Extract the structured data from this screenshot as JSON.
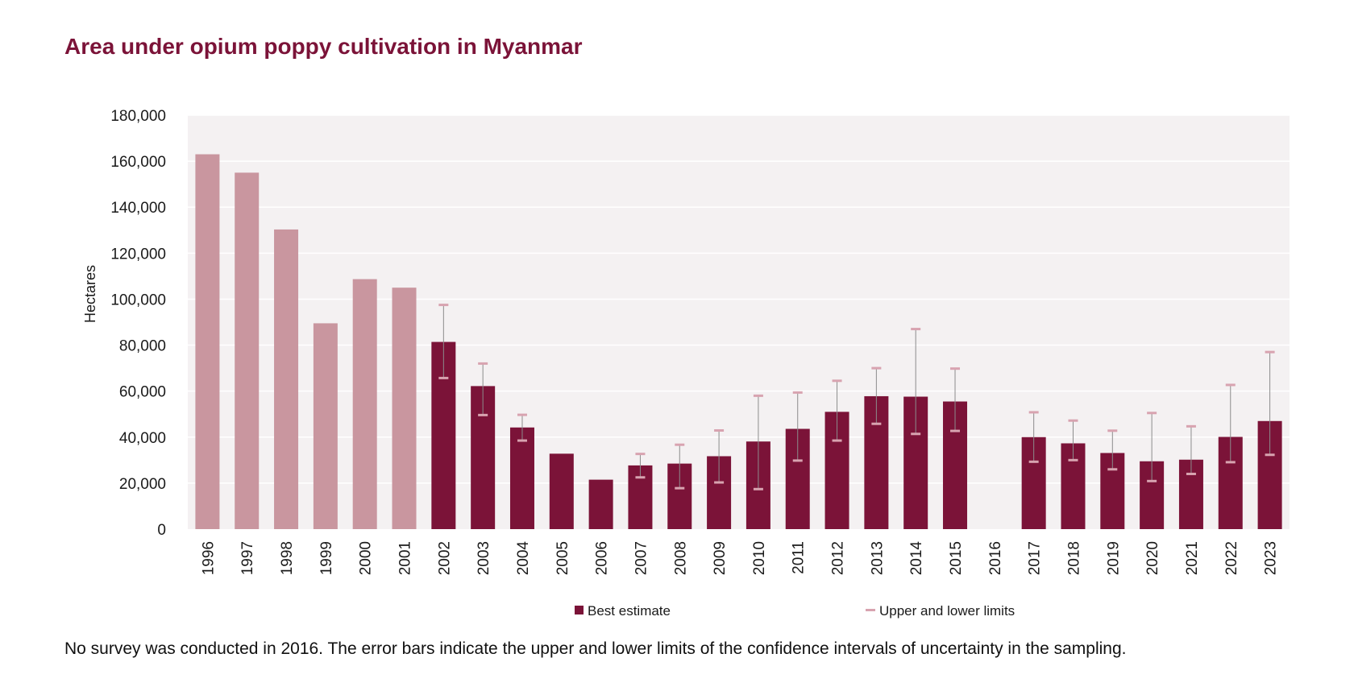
{
  "title": "Area under opium poppy cultivation in Myanmar",
  "note": "No survey was conducted in 2016. The error bars indicate the upper and lower limits of the confidence intervals of uncertainty in the sampling.",
  "colors": {
    "best": "#7b1338",
    "early": "#c9969f",
    "limit": "#d8a3b0",
    "errline": "#8c8c8c",
    "plot_bg": "#f4f1f2",
    "grid": "#ffffff",
    "title": "#7b1338"
  },
  "chart_data": {
    "type": "bar",
    "title": "Area under opium poppy cultivation in Myanmar",
    "xlabel": "",
    "ylabel": "Hectares",
    "ylim": [
      0,
      180000
    ],
    "yticks": [
      0,
      20000,
      40000,
      60000,
      80000,
      100000,
      120000,
      140000,
      160000,
      180000
    ],
    "ytick_labels": [
      "0",
      "20,000",
      "40,000",
      "60,000",
      "80,000",
      "100,000",
      "120,000",
      "140,000",
      "160,000",
      "180,000"
    ],
    "categories": [
      "1996",
      "1997",
      "1998",
      "1999",
      "2000",
      "2001",
      "2002",
      "2003",
      "2004",
      "2005",
      "2006",
      "2007",
      "2008",
      "2009",
      "2010",
      "2011",
      "2012",
      "2013",
      "2014",
      "2015",
      "2016",
      "2017",
      "2018",
      "2019",
      "2020",
      "2021",
      "2022",
      "2023"
    ],
    "series": [
      {
        "name": "Best estimate",
        "values": [
          163000,
          155000,
          130300,
          89500,
          108700,
          105000,
          81400,
          62200,
          44200,
          32800,
          21500,
          27700,
          28500,
          31700,
          38100,
          43600,
          51000,
          57800,
          57600,
          55500,
          null,
          40000,
          37300,
          33100,
          29500,
          30200,
          40100,
          47000
        ]
      },
      {
        "name": "Upper and lower limits",
        "upper": [
          null,
          null,
          null,
          null,
          null,
          null,
          97500,
          72000,
          49700,
          null,
          null,
          32700,
          36700,
          42900,
          58000,
          59400,
          64500,
          70000,
          87000,
          69800,
          null,
          50800,
          47200,
          42800,
          50500,
          44700,
          62700,
          77000
        ],
        "lower": [
          null,
          null,
          null,
          null,
          null,
          null,
          65700,
          49600,
          38500,
          null,
          null,
          22500,
          17800,
          20300,
          17400,
          29800,
          38500,
          45800,
          41400,
          42700,
          null,
          29300,
          30000,
          26000,
          20900,
          24000,
          29100,
          32300
        ]
      }
    ],
    "light_years": [
      "1996",
      "1997",
      "1998",
      "1999",
      "2000",
      "2001"
    ],
    "legend": {
      "placement": "bottom-center",
      "entries": [
        "Best estimate",
        "Upper and lower limits"
      ]
    }
  }
}
